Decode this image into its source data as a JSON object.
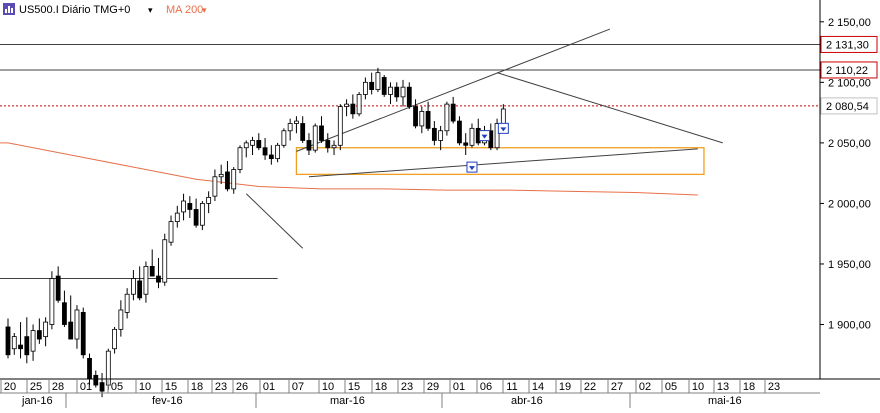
{
  "header": {
    "symbol_line": "US500.I Diário TMG+0",
    "dropdown_glyph": "▾",
    "ma_label": "MA 200",
    "ma_dropdown_glyph": "▾"
  },
  "colors": {
    "background": "#ffffff",
    "axis": "#000000",
    "candle_outline": "#000000",
    "candle_up_fill": "#ffffff",
    "candle_down_fill": "#000000",
    "ma200": "#e8704a",
    "rectangle": "#f0a020",
    "dotted_line": "#cc0000",
    "red_label_border": "#cc0000",
    "trendline": "#404040",
    "marker_blue": "#2040c0"
  },
  "chart_data": {
    "type": "candlestick",
    "title": "US500.I Diário TMG+0",
    "ylim": [
      1855,
      2168
    ],
    "y_ticks": [
      "2 150,00",
      "2 100,00",
      "2 050,00",
      "2 000,00",
      "1 950,00",
      "1 900,00"
    ],
    "y_tick_values": [
      2150,
      2100,
      2050,
      2000,
      1950,
      1900
    ],
    "x_day_labels": [
      "20",
      "25",
      "28",
      "01",
      "05",
      "10",
      "15",
      "18",
      "23",
      "26",
      "01",
      "07",
      "10",
      "15",
      "18",
      "23",
      "29",
      "01",
      "06",
      "11",
      "14",
      "19",
      "22",
      "27",
      "02",
      "05",
      "10",
      "13",
      "18",
      "23"
    ],
    "x_month_labels": [
      "jan-16",
      "fev-16",
      "mar-16",
      "abr-16",
      "mai-16"
    ],
    "price_labels": [
      {
        "text": "2 131,30",
        "value": 2131.3,
        "style": "red-border"
      },
      {
        "text": "2 110,22",
        "value": 2110.22,
        "style": "red-border"
      },
      {
        "text": "2 080,54",
        "value": 2080.54,
        "style": "current"
      }
    ],
    "horizontal_lines": [
      {
        "value": 2131.3,
        "style": "solid"
      },
      {
        "value": 2110.22,
        "style": "solid"
      },
      {
        "value": 2080.54,
        "style": "dotted-red"
      },
      {
        "value": 1938,
        "style": "solid",
        "from_index": 0,
        "to_index": 43
      }
    ],
    "rectangle": {
      "from_index": 46,
      "to_index": 111,
      "top": 2046,
      "bottom": 2024
    },
    "trendlines": [
      {
        "from": [
          46,
          2043
        ],
        "to": [
          96,
          2144
        ]
      },
      {
        "from": [
          78,
          2108
        ],
        "to": [
          114,
          2050
        ]
      },
      {
        "from": [
          48,
          2022
        ],
        "to": [
          110,
          2045
        ]
      },
      {
        "from": [
          38,
          2008
        ],
        "to": [
          47,
          1963
        ]
      }
    ],
    "ma200": {
      "name": "MA 200",
      "points": [
        [
          0,
          2050
        ],
        [
          10,
          2040
        ],
        [
          20,
          2030
        ],
        [
          30,
          2020
        ],
        [
          40,
          2014
        ],
        [
          50,
          2012
        ],
        [
          60,
          2012
        ],
        [
          70,
          2011
        ],
        [
          80,
          2011
        ],
        [
          90,
          2010
        ],
        [
          100,
          2009
        ],
        [
          110,
          2007
        ]
      ]
    },
    "candles": [
      [
        1898,
        1905,
        1872,
        1875
      ],
      [
        1880,
        1893,
        1875,
        1890
      ],
      [
        1883,
        1902,
        1872,
        1880
      ],
      [
        1890,
        1906,
        1868,
        1875
      ],
      [
        1878,
        1900,
        1870,
        1895
      ],
      [
        1895,
        1905,
        1884,
        1888
      ],
      [
        1890,
        1906,
        1882,
        1902
      ],
      [
        1900,
        1944,
        1896,
        1938
      ],
      [
        1940,
        1948,
        1918,
        1920
      ],
      [
        1918,
        1928,
        1898,
        1900
      ],
      [
        1902,
        1924,
        1888,
        1888
      ],
      [
        1888,
        1916,
        1880,
        1912
      ],
      [
        1910,
        1914,
        1872,
        1875
      ],
      [
        1872,
        1876,
        1850,
        1855
      ],
      [
        1858,
        1862,
        1848,
        1850
      ],
      [
        1852,
        1860,
        1840,
        1845
      ],
      [
        1850,
        1880,
        1846,
        1878
      ],
      [
        1880,
        1898,
        1876,
        1896
      ],
      [
        1896,
        1920,
        1890,
        1912
      ],
      [
        1910,
        1930,
        1905,
        1925
      ],
      [
        1925,
        1945,
        1920,
        1938
      ],
      [
        1936,
        1948,
        1920,
        1922
      ],
      [
        1925,
        1952,
        1918,
        1948
      ],
      [
        1948,
        1962,
        1940,
        1940
      ],
      [
        1940,
        1955,
        1930,
        1935
      ],
      [
        1935,
        1975,
        1932,
        1970
      ],
      [
        1968,
        1990,
        1965,
        1985
      ],
      [
        1985,
        1998,
        1980,
        1992
      ],
      [
        1993,
        2008,
        1986,
        2002
      ],
      [
        2000,
        2006,
        1988,
        1995
      ],
      [
        1995,
        2004,
        1980,
        1982
      ],
      [
        1982,
        2002,
        1978,
        2000
      ],
      [
        2000,
        2010,
        1992,
        2005
      ],
      [
        2006,
        2028,
        2002,
        2022
      ],
      [
        2022,
        2032,
        2016,
        2024
      ],
      [
        2026,
        2035,
        2010,
        2012
      ],
      [
        2012,
        2030,
        2008,
        2028
      ],
      [
        2028,
        2048,
        2025,
        2046
      ],
      [
        2046,
        2052,
        2038,
        2050
      ],
      [
        2048,
        2055,
        2040,
        2052
      ],
      [
        2052,
        2058,
        2044,
        2046
      ],
      [
        2046,
        2054,
        2036,
        2040
      ],
      [
        2040,
        2048,
        2032,
        2037
      ],
      [
        2037,
        2050,
        2034,
        2048
      ],
      [
        2048,
        2062,
        2046,
        2060
      ],
      [
        2060,
        2070,
        2052,
        2066
      ],
      [
        2066,
        2072,
        2058,
        2068
      ],
      [
        2066,
        2072,
        2050,
        2052
      ],
      [
        2052,
        2058,
        2040,
        2044
      ],
      [
        2044,
        2066,
        2042,
        2064
      ],
      [
        2064,
        2072,
        2050,
        2052
      ],
      [
        2052,
        2058,
        2042,
        2046
      ],
      [
        2046,
        2052,
        2040,
        2048
      ],
      [
        2048,
        2082,
        2044,
        2080
      ],
      [
        2080,
        2086,
        2072,
        2082
      ],
      [
        2082,
        2090,
        2070,
        2074
      ],
      [
        2074,
        2092,
        2072,
        2090
      ],
      [
        2090,
        2104,
        2086,
        2100
      ],
      [
        2100,
        2108,
        2090,
        2094
      ],
      [
        2094,
        2112,
        2092,
        2108
      ],
      [
        2104,
        2106,
        2088,
        2090
      ],
      [
        2090,
        2100,
        2082,
        2096
      ],
      [
        2096,
        2100,
        2084,
        2088
      ],
      [
        2088,
        2102,
        2080,
        2096
      ],
      [
        2096,
        2100,
        2078,
        2080
      ],
      [
        2080,
        2086,
        2062,
        2064
      ],
      [
        2064,
        2080,
        2058,
        2076
      ],
      [
        2076,
        2084,
        2060,
        2062
      ],
      [
        2062,
        2068,
        2048,
        2052
      ],
      [
        2052,
        2064,
        2044,
        2060
      ],
      [
        2060,
        2084,
        2056,
        2082
      ],
      [
        2082,
        2088,
        2066,
        2068
      ],
      [
        2068,
        2072,
        2048,
        2050
      ],
      [
        2050,
        2058,
        2040,
        2048
      ],
      [
        2048,
        2066,
        2046,
        2062
      ],
      [
        2062,
        2070,
        2048,
        2050
      ],
      [
        2050,
        2064,
        2048,
        2060
      ],
      [
        2060,
        2066,
        2044,
        2046
      ],
      [
        2046,
        2070,
        2044,
        2066
      ],
      [
        2066,
        2082,
        2062,
        2078
      ]
    ]
  }
}
